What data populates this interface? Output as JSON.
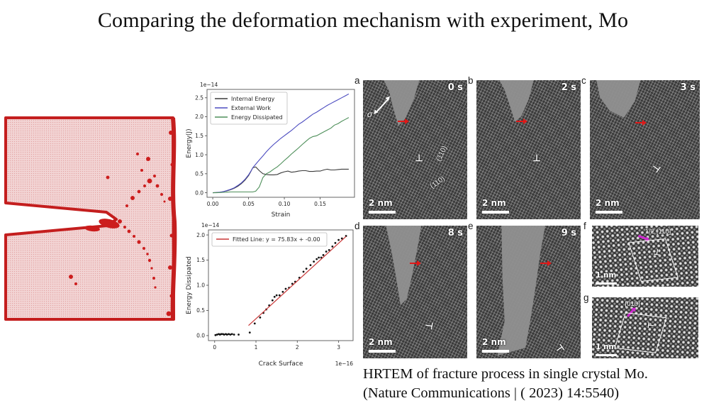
{
  "slide": {
    "title": "Comparing the deformation mechanism with experiment, Mo"
  },
  "caption": {
    "line1": "HRTEM of fracture process in single crystal Mo.",
    "line2": "(Nature Communications | ( 2023) 14:5540)"
  },
  "colors": {
    "sim_red": "#c41e1e",
    "sim_pink": "#f2d4d4",
    "internal_energy": "#3a3a3a",
    "external_work": "#4d4dc0",
    "energy_dissipated": "#4e8f5a",
    "fit_line_red": "#c83737",
    "burgers_magenta": "#d02ad0"
  },
  "chart_data": [
    {
      "type": "line",
      "xlabel": "Strain",
      "ylabel": "Energy(J)",
      "y_offset_label": "1e−14",
      "xlim": [
        -0.008,
        0.198
      ],
      "ylim": [
        -0.12,
        2.72
      ],
      "xticks": [
        0.0,
        0.05,
        0.1,
        0.15
      ],
      "xtick_labels": [
        "0.00",
        "0.05",
        "0.10",
        "0.15"
      ],
      "yticks": [
        0.0,
        0.5,
        1.0,
        1.5,
        2.0,
        2.5
      ],
      "ytick_labels": [
        "0.0",
        "0.5",
        "1.0",
        "1.5",
        "2.0",
        "2.5"
      ],
      "grid": false,
      "legend": {
        "position": "upper left",
        "width": 108,
        "entries": [
          {
            "label": "Internal Energy",
            "color": "#3a3a3a"
          },
          {
            "label": "External Work",
            "color": "#4d4dc0"
          },
          {
            "label": "Energy Dissipated",
            "color": "#4e8f5a"
          }
        ]
      },
      "series": [
        {
          "name": "Internal Energy",
          "color": "#3a3a3a",
          "x": [
            0,
            0.005,
            0.01,
            0.015,
            0.02,
            0.025,
            0.03,
            0.035,
            0.04,
            0.045,
            0.05,
            0.053,
            0.056,
            0.06,
            0.065,
            0.07,
            0.075,
            0.08,
            0.085,
            0.09,
            0.095,
            0.1,
            0.105,
            0.11,
            0.115,
            0.12,
            0.125,
            0.13,
            0.135,
            0.14,
            0.145,
            0.15,
            0.155,
            0.16,
            0.165,
            0.17,
            0.175,
            0.18,
            0.185,
            0.19
          ],
          "y": [
            0,
            0.005,
            0.01,
            0.03,
            0.05,
            0.08,
            0.12,
            0.17,
            0.24,
            0.33,
            0.45,
            0.55,
            0.66,
            0.68,
            0.58,
            0.5,
            0.48,
            0.47,
            0.47,
            0.48,
            0.52,
            0.55,
            0.57,
            0.54,
            0.55,
            0.57,
            0.58,
            0.58,
            0.56,
            0.56,
            0.57,
            0.57,
            0.6,
            0.62,
            0.6,
            0.6,
            0.61,
            0.62,
            0.62,
            0.62
          ]
        },
        {
          "name": "External Work",
          "color": "#4d4dc0",
          "x": [
            0,
            0.005,
            0.01,
            0.015,
            0.02,
            0.025,
            0.03,
            0.035,
            0.04,
            0.045,
            0.05,
            0.053,
            0.056,
            0.06,
            0.065,
            0.07,
            0.075,
            0.08,
            0.085,
            0.09,
            0.095,
            0.1,
            0.105,
            0.11,
            0.115,
            0.12,
            0.125,
            0.13,
            0.135,
            0.14,
            0.145,
            0.15,
            0.155,
            0.16,
            0.165,
            0.17,
            0.175,
            0.18,
            0.185,
            0.19
          ],
          "y": [
            0,
            0.005,
            0.015,
            0.03,
            0.06,
            0.09,
            0.13,
            0.19,
            0.26,
            0.35,
            0.47,
            0.56,
            0.66,
            0.75,
            0.86,
            0.97,
            1.08,
            1.18,
            1.27,
            1.35,
            1.43,
            1.5,
            1.57,
            1.64,
            1.72,
            1.8,
            1.86,
            1.93,
            2.0,
            2.07,
            2.12,
            2.18,
            2.24,
            2.3,
            2.35,
            2.4,
            2.45,
            2.5,
            2.55,
            2.6
          ]
        },
        {
          "name": "Energy Dissipated",
          "color": "#4e8f5a",
          "x": [
            0,
            0.005,
            0.01,
            0.015,
            0.02,
            0.025,
            0.03,
            0.035,
            0.04,
            0.045,
            0.05,
            0.053,
            0.056,
            0.06,
            0.065,
            0.07,
            0.075,
            0.08,
            0.085,
            0.09,
            0.095,
            0.1,
            0.105,
            0.11,
            0.115,
            0.12,
            0.125,
            0.13,
            0.135,
            0.14,
            0.145,
            0.15,
            0.155,
            0.16,
            0.165,
            0.17,
            0.175,
            0.18,
            0.185,
            0.19
          ],
          "y": [
            0,
            0,
            0.005,
            0.01,
            0.015,
            0.02,
            0.02,
            0.02,
            0.02,
            0.02,
            0.02,
            0.02,
            0.02,
            0.04,
            0.15,
            0.4,
            0.5,
            0.55,
            0.62,
            0.68,
            0.76,
            0.85,
            0.93,
            1.02,
            1.1,
            1.18,
            1.27,
            1.35,
            1.43,
            1.48,
            1.5,
            1.55,
            1.6,
            1.65,
            1.7,
            1.78,
            1.82,
            1.88,
            1.93,
            1.98
          ]
        }
      ]
    },
    {
      "type": "scatter",
      "xlabel": "Crack Surface",
      "ylabel": "Energy Dissipated",
      "y_offset_label": "1e−14",
      "x_offset_label": "1e−16",
      "xlim": [
        -0.15,
        3.35
      ],
      "ylim": [
        -0.1,
        2.1
      ],
      "xticks": [
        0,
        1,
        2,
        3
      ],
      "xtick_labels": [
        "0",
        "1",
        "2",
        "3"
      ],
      "yticks": [
        0.0,
        0.5,
        1.0,
        1.5,
        2.0
      ],
      "ytick_labels": [
        "0.0",
        "0.5",
        "1.0",
        "1.5",
        "2.0"
      ],
      "grid": false,
      "legend": {
        "position": "upper left",
        "width": 162,
        "entries": [
          {
            "label": "Fitted Line: y = 75.83x + -0.00",
            "color": "#c83737"
          }
        ]
      },
      "points": [
        [
          0.02,
          0.01
        ],
        [
          0.06,
          0.02
        ],
        [
          0.1,
          0.03
        ],
        [
          0.13,
          0.02
        ],
        [
          0.16,
          0.03
        ],
        [
          0.2,
          0.03
        ],
        [
          0.23,
          0.02
        ],
        [
          0.27,
          0.03
        ],
        [
          0.3,
          0.02
        ],
        [
          0.34,
          0.03
        ],
        [
          0.38,
          0.02
        ],
        [
          0.42,
          0.03
        ],
        [
          0.47,
          0.02
        ],
        [
          0.58,
          0.02
        ],
        [
          0.85,
          0.06
        ],
        [
          0.97,
          0.24
        ],
        [
          1.1,
          0.36
        ],
        [
          1.18,
          0.45
        ],
        [
          1.25,
          0.52
        ],
        [
          1.32,
          0.6
        ],
        [
          1.4,
          0.7
        ],
        [
          1.45,
          0.77
        ],
        [
          1.5,
          0.8
        ],
        [
          1.57,
          0.8
        ],
        [
          1.65,
          0.87
        ],
        [
          1.72,
          0.93
        ],
        [
          1.8,
          0.95
        ],
        [
          1.88,
          1.03
        ],
        [
          1.95,
          1.07
        ],
        [
          2.05,
          1.15
        ],
        [
          2.15,
          1.27
        ],
        [
          2.22,
          1.33
        ],
        [
          2.32,
          1.4
        ],
        [
          2.4,
          1.47
        ],
        [
          2.47,
          1.52
        ],
        [
          2.52,
          1.55
        ],
        [
          2.58,
          1.55
        ],
        [
          2.63,
          1.6
        ],
        [
          2.7,
          1.67
        ],
        [
          2.77,
          1.7
        ],
        [
          2.85,
          1.77
        ],
        [
          2.92,
          1.84
        ],
        [
          3.0,
          1.9
        ],
        [
          3.08,
          1.93
        ],
        [
          3.18,
          1.98
        ]
      ],
      "fit_line": {
        "x1": 0.82,
        "y1": 0.2,
        "x2": 3.18,
        "y2": 1.97,
        "color": "#c83737"
      }
    }
  ],
  "tem": {
    "panels": [
      {
        "letter": "a",
        "time": "0 s",
        "scale_bar": "2 nm"
      },
      {
        "letter": "b",
        "time": "2 s",
        "scale_bar": "2 nm"
      },
      {
        "letter": "c",
        "time": "3 s",
        "scale_bar": "2 nm"
      },
      {
        "letter": "d",
        "time": "8 s",
        "scale_bar": "2 nm"
      },
      {
        "letter": "e",
        "time": "9 s",
        "scale_bar": "2 nm"
      },
      {
        "letter": "f",
        "burgers_label": "1/2 [110]",
        "scale_bar": "1 nm"
      },
      {
        "letter": "g",
        "burgers_label": "[010]",
        "scale_bar": "1 nm"
      }
    ],
    "annotations": {
      "stress": "σ",
      "plane_1": "(110)",
      "plane_2": "(110)",
      "dislocation_symbol": "⊥"
    }
  }
}
